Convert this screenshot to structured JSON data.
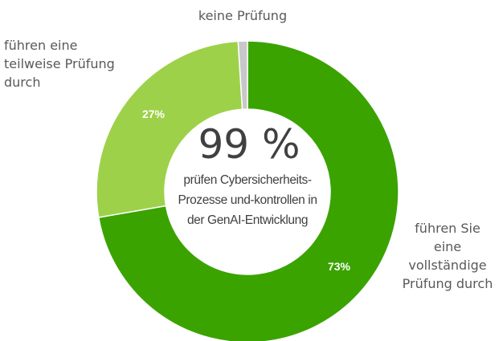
{
  "chart_data": {
    "type": "pie",
    "style": "donut",
    "slices": [
      {
        "label": [
          "führen Sie",
          "eine",
          "vollständige",
          "Prüfung durch"
        ],
        "value": 73,
        "data_label": "73%",
        "color": "#3aa300"
      },
      {
        "label": [
          "führen eine",
          "teilweise Prüfung",
          "durch"
        ],
        "value": 27,
        "data_label": "27%",
        "color": "#9ed14a"
      },
      {
        "label": [
          "keine Prüfung"
        ],
        "value": 1,
        "data_label": "",
        "color": "#c8c8c8"
      }
    ],
    "center": {
      "headline": "99 %",
      "lines": [
        "prüfen Cybersicherheits-",
        "Prozesse und-kontrollen in",
        "der GenAI-Entwicklung"
      ]
    }
  }
}
